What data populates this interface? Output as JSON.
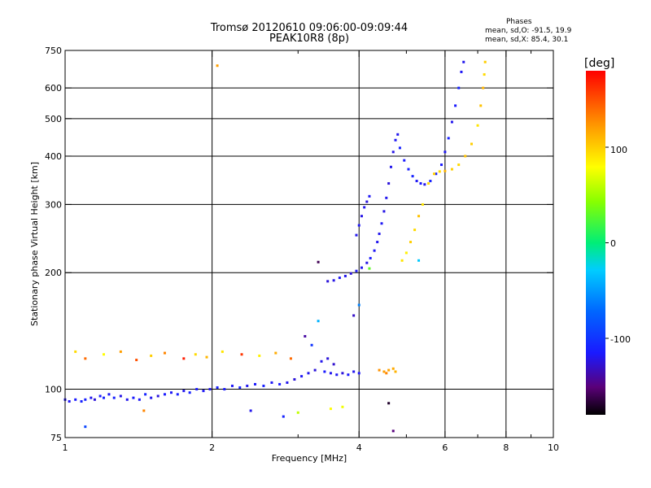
{
  "header": {
    "title": "Tromsø 20120610 09:06:00-09:09:44",
    "subtitle": "PEAK10R8 (8p)"
  },
  "phases_box": {
    "heading": "Phases",
    "line_o": "mean, sd,O: -91.5, 19.9",
    "line_x": "mean, sd,X:  85.4, 30.1"
  },
  "colorbar": {
    "unit_label": "[deg]",
    "ticks": [
      "100",
      "0",
      "-100"
    ]
  },
  "chart_data": {
    "type": "scatter",
    "xlabel": "Frequency [MHz]",
    "ylabel": "Stationary phase Virtual Height [km]",
    "xscale": "log",
    "yscale": "log",
    "xlim": [
      1,
      10
    ],
    "ylim": [
      75,
      750
    ],
    "grid": true,
    "x_ticks": [
      {
        "v": 1,
        "label": "1"
      },
      {
        "v": 2,
        "label": "2"
      },
      {
        "v": 4,
        "label": "4"
      },
      {
        "v": 6,
        "label": "6"
      },
      {
        "v": 8,
        "label": "8"
      },
      {
        "v": 10,
        "label": "10"
      }
    ],
    "x_minor_ticks": [
      3,
      5,
      7,
      9
    ],
    "y_ticks": [
      {
        "v": 75,
        "label": "75"
      },
      {
        "v": 100,
        "label": "100"
      },
      {
        "v": 200,
        "label": "200"
      },
      {
        "v": 300,
        "label": "300"
      },
      {
        "v": 400,
        "label": "400"
      },
      {
        "v": 500,
        "label": "500"
      },
      {
        "v": 600,
        "label": "600"
      },
      {
        "v": 750,
        "label": "750"
      }
    ],
    "y_gridlines": [
      100,
      200,
      300,
      400,
      500,
      600
    ],
    "x_gridlines": [
      2,
      4,
      6,
      8
    ],
    "colorscale": {
      "min": -180,
      "max": 180,
      "label": "[deg]"
    },
    "series": [
      {
        "trace": "low-e-layer",
        "points": [
          [
            1.0,
            94,
            -120
          ],
          [
            1.02,
            93,
            -118
          ],
          [
            1.05,
            94,
            -115
          ],
          [
            1.08,
            93,
            -110
          ],
          [
            1.1,
            94,
            -112
          ],
          [
            1.13,
            95,
            -120
          ],
          [
            1.15,
            94,
            -125
          ],
          [
            1.18,
            96,
            -115
          ],
          [
            1.2,
            95,
            -110
          ],
          [
            1.23,
            97,
            -118
          ],
          [
            1.26,
            95,
            -112
          ],
          [
            1.3,
            96,
            -122
          ],
          [
            1.34,
            94,
            -120
          ],
          [
            1.38,
            95,
            -115
          ],
          [
            1.42,
            94,
            -118
          ],
          [
            1.46,
            97,
            -110
          ],
          [
            1.5,
            95,
            -120
          ],
          [
            1.55,
            96,
            -125
          ],
          [
            1.6,
            97,
            -115
          ],
          [
            1.65,
            98,
            -118
          ],
          [
            1.7,
            97,
            -112
          ],
          [
            1.75,
            99,
            -120
          ],
          [
            1.8,
            98,
            -110
          ],
          [
            1.86,
            100,
            -115
          ],
          [
            1.92,
            99,
            -118
          ],
          [
            1.98,
            100,
            -120
          ],
          [
            2.05,
            101,
            -112
          ],
          [
            2.12,
            100,
            -115
          ],
          [
            2.2,
            102,
            -118
          ],
          [
            2.28,
            101,
            -110
          ],
          [
            2.36,
            102,
            -120
          ],
          [
            2.45,
            103,
            -116
          ],
          [
            2.55,
            102,
            -112
          ],
          [
            2.65,
            104,
            -118
          ],
          [
            2.75,
            103,
            -115
          ],
          [
            2.85,
            104,
            -120
          ],
          [
            2.95,
            106,
            -125
          ],
          [
            3.05,
            108,
            -118
          ],
          [
            3.15,
            110,
            -120
          ],
          [
            3.25,
            112,
            -125
          ]
        ]
      },
      {
        "trace": "e-layer-mid",
        "points": [
          [
            3.4,
            111,
            -115
          ],
          [
            3.5,
            110,
            -120
          ],
          [
            3.6,
            109,
            -118
          ],
          [
            3.7,
            110,
            -125
          ],
          [
            3.8,
            109,
            -115
          ],
          [
            3.9,
            111,
            -120
          ],
          [
            4.0,
            110,
            -118
          ],
          [
            3.45,
            120,
            -125
          ],
          [
            3.55,
            116,
            -128
          ],
          [
            3.35,
            118,
            -120
          ]
        ]
      },
      {
        "trace": "e-layer-x",
        "points": [
          [
            4.4,
            112,
            125
          ],
          [
            4.5,
            111,
            120
          ],
          [
            4.6,
            112,
            118
          ],
          [
            4.7,
            113,
            115
          ],
          [
            4.75,
            111,
            112
          ],
          [
            4.55,
            110,
            130
          ]
        ]
      },
      {
        "trace": "f-layer-o-lower",
        "points": [
          [
            3.45,
            190,
            -125
          ],
          [
            3.55,
            191,
            -122
          ],
          [
            3.65,
            194,
            -118
          ],
          [
            3.75,
            196,
            -120
          ],
          [
            3.85,
            199,
            -125
          ],
          [
            3.95,
            202,
            -118
          ],
          [
            4.05,
            206,
            -120
          ],
          [
            4.15,
            212,
            -122
          ],
          [
            4.22,
            218,
            -115
          ],
          [
            4.3,
            228,
            -118
          ],
          [
            4.36,
            240,
            -120
          ],
          [
            4.4,
            252,
            -120
          ],
          [
            4.45,
            268,
            -118
          ],
          [
            4.5,
            288,
            -122
          ],
          [
            4.55,
            312,
            -120
          ],
          [
            4.6,
            340,
            -125
          ],
          [
            4.65,
            375,
            -120
          ],
          [
            4.7,
            410,
            -122
          ],
          [
            4.75,
            440,
            -118
          ],
          [
            4.8,
            455,
            -120
          ]
        ]
      },
      {
        "trace": "f-layer-o-arm",
        "points": [
          [
            3.95,
            250,
            -120
          ],
          [
            4.0,
            265,
            -118
          ],
          [
            4.05,
            280,
            -122
          ],
          [
            4.1,
            295,
            -120
          ],
          [
            4.15,
            305,
            -125
          ],
          [
            4.2,
            315,
            -118
          ]
        ]
      },
      {
        "trace": "f-layer-o-upper",
        "points": [
          [
            4.85,
            420,
            -110
          ],
          [
            4.95,
            390,
            -115
          ],
          [
            5.05,
            370,
            -112
          ],
          [
            5.15,
            355,
            -110
          ],
          [
            5.25,
            345,
            -118
          ],
          [
            5.35,
            340,
            -115
          ],
          [
            5.45,
            338,
            -120
          ],
          [
            5.6,
            345,
            -110
          ],
          [
            5.75,
            360,
            -112
          ],
          [
            5.9,
            380,
            -115
          ],
          [
            6.0,
            410,
            -118
          ],
          [
            6.1,
            445,
            -112
          ],
          [
            6.2,
            490,
            -120
          ],
          [
            6.3,
            540,
            -115
          ],
          [
            6.4,
            600,
            -110
          ],
          [
            6.48,
            660,
            -118
          ],
          [
            6.55,
            700,
            -120
          ]
        ]
      },
      {
        "trace": "f-layer-x",
        "points": [
          [
            4.9,
            215,
            90
          ],
          [
            5.0,
            225,
            85
          ],
          [
            5.1,
            240,
            100
          ],
          [
            5.2,
            258,
            95
          ],
          [
            5.3,
            280,
            105
          ],
          [
            5.4,
            300,
            90
          ],
          [
            5.55,
            340,
            95
          ],
          [
            5.7,
            360,
            100
          ],
          [
            5.85,
            365,
            95
          ],
          [
            6.0,
            366,
            110
          ],
          [
            6.2,
            370,
            100
          ],
          [
            6.4,
            380,
            95
          ],
          [
            6.6,
            400,
            105
          ],
          [
            6.8,
            430,
            100
          ],
          [
            7.0,
            480,
            90
          ],
          [
            7.1,
            540,
            105
          ],
          [
            7.18,
            600,
            110
          ],
          [
            7.22,
            650,
            95
          ],
          [
            7.25,
            700,
            100
          ]
        ]
      },
      {
        "trace": "scattered-noise",
        "points": [
          [
            1.05,
            125,
            95
          ],
          [
            1.1,
            120,
            140
          ],
          [
            1.2,
            123,
            80
          ],
          [
            1.3,
            125,
            120
          ],
          [
            1.4,
            119,
            150
          ],
          [
            1.5,
            122,
            100
          ],
          [
            1.6,
            124,
            130
          ],
          [
            1.75,
            120,
            170
          ],
          [
            1.85,
            123,
            95
          ],
          [
            1.95,
            121,
            110
          ],
          [
            2.1,
            125,
            90
          ],
          [
            2.3,
            123,
            160
          ],
          [
            2.5,
            122,
            85
          ],
          [
            2.7,
            124,
            115
          ],
          [
            2.9,
            120,
            140
          ],
          [
            3.0,
            87,
            60
          ],
          [
            3.2,
            130,
            -100
          ],
          [
            3.5,
            89,
            80
          ],
          [
            3.7,
            90,
            75
          ],
          [
            3.3,
            213,
            -160
          ],
          [
            2.05,
            685,
            120
          ],
          [
            3.1,
            137,
            -140
          ],
          [
            2.8,
            85,
            -110
          ],
          [
            1.1,
            80,
            -90
          ],
          [
            4.7,
            78,
            -150
          ],
          [
            4.0,
            165,
            -60
          ],
          [
            3.3,
            150,
            -40
          ],
          [
            4.6,
            92,
            -170
          ],
          [
            2.4,
            88,
            -120
          ],
          [
            1.45,
            88,
            130
          ],
          [
            3.9,
            155,
            -130
          ],
          [
            4.2,
            205,
            30
          ],
          [
            5.3,
            215,
            -30
          ]
        ]
      }
    ]
  }
}
